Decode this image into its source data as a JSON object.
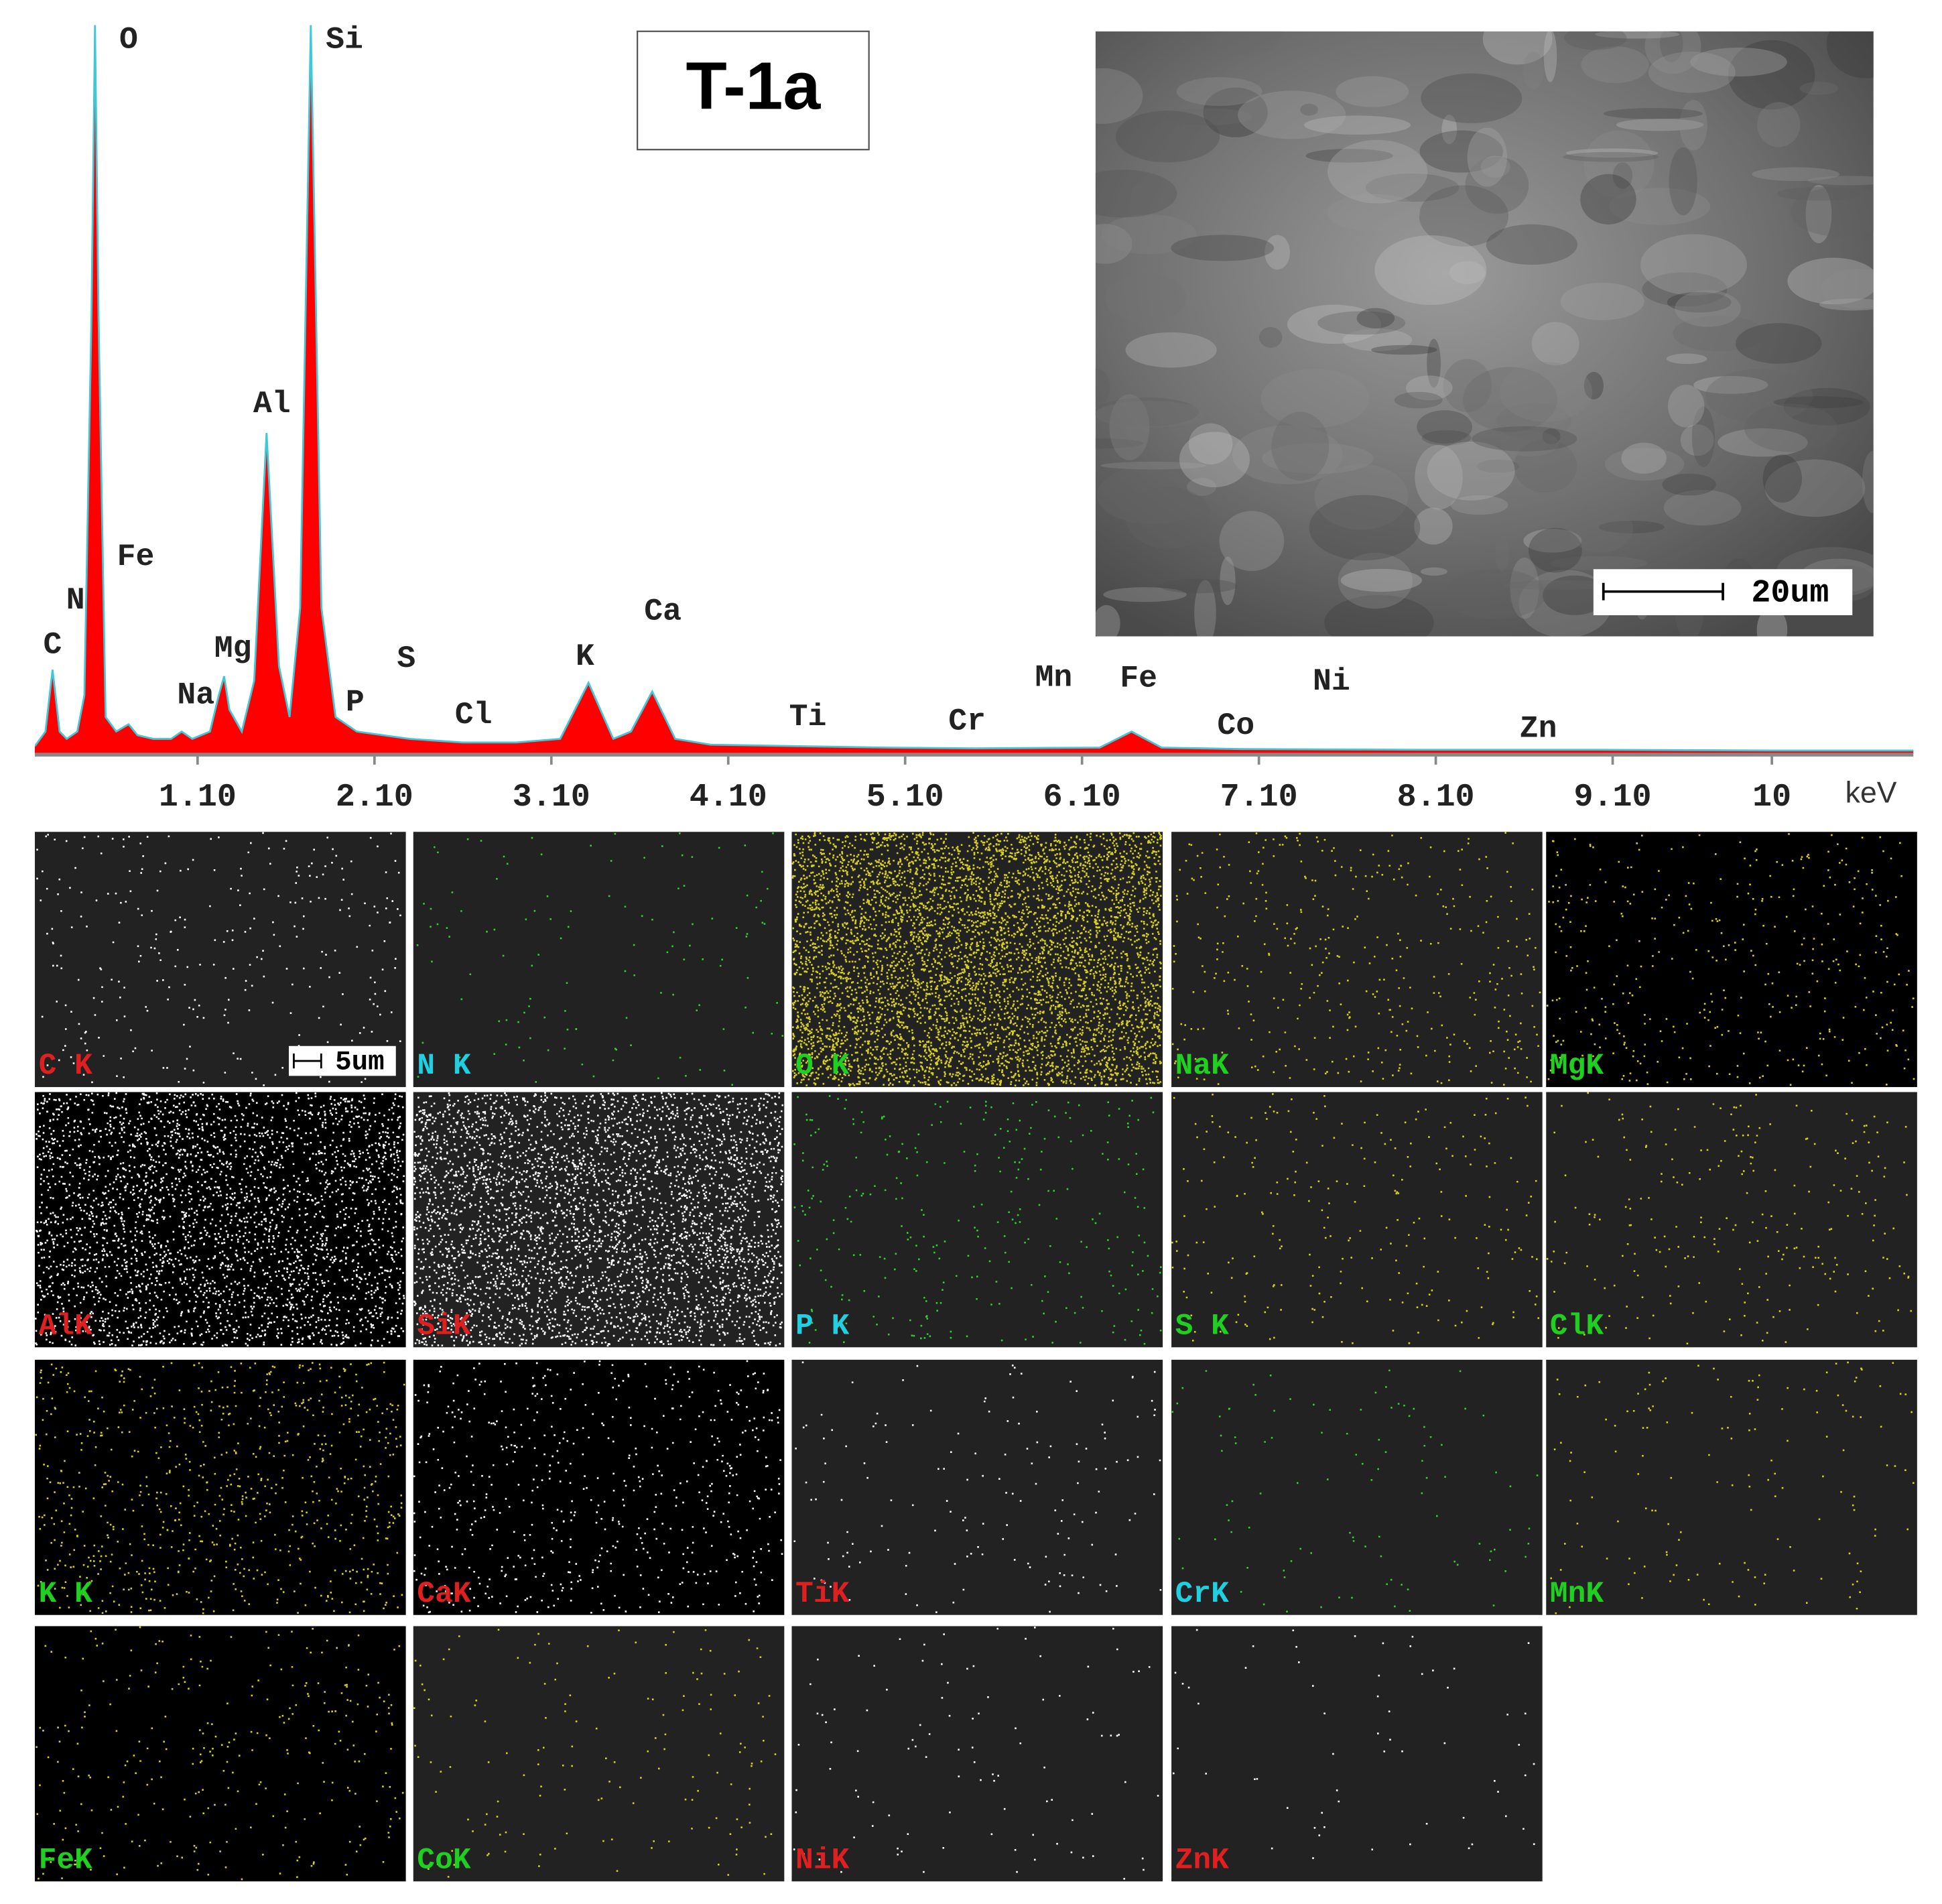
{
  "chart_data": {
    "type": "area",
    "title": "T-1a",
    "x": [
      0.18,
      0.24,
      0.28,
      0.32,
      0.36,
      0.42,
      0.46,
      0.5,
      0.52,
      0.54,
      0.58,
      0.64,
      0.71,
      0.76,
      0.85,
      0.95,
      1.01,
      1.07,
      1.17,
      1.22,
      1.25,
      1.28,
      1.35,
      1.42,
      1.49,
      1.56,
      1.62,
      1.68,
      1.74,
      1.8,
      1.88,
      2.0,
      2.3,
      2.6,
      2.9,
      3.15,
      3.31,
      3.45,
      3.55,
      3.67,
      3.8,
      4.0,
      4.5,
      5.0,
      5.5,
      6.2,
      6.38,
      6.55,
      7.0,
      8.0,
      9.0,
      10.0,
      10.8
    ],
    "values": [
      1,
      3,
      11.5,
      3,
      2,
      3,
      8,
      60,
      100,
      60,
      5,
      3,
      4,
      2.5,
      2,
      2,
      3,
      2,
      3,
      8,
      10.6,
      6,
      3,
      10,
      44,
      12,
      5,
      20,
      100,
      20,
      5,
      3,
      2,
      1.5,
      1.5,
      2,
      9.7,
      2,
      3,
      8.5,
      2,
      1.2,
      1,
      0.8,
      0.7,
      0.8,
      3,
      0.8,
      0.6,
      0.5,
      0.5,
      0.4,
      0.4
    ],
    "color": "#ff0000",
    "line_color": "#40c8d8",
    "xlim": [
      0.18,
      10.8
    ],
    "ylim": [
      0,
      100
    ],
    "xticks": [
      {
        "value": 1.1,
        "label": "1.10"
      },
      {
        "value": 2.1,
        "label": "2.10"
      },
      {
        "value": 3.1,
        "label": "3.10"
      },
      {
        "value": 4.1,
        "label": "4.10"
      },
      {
        "value": 5.1,
        "label": "5.10"
      },
      {
        "value": 6.1,
        "label": "6.10"
      },
      {
        "value": 7.1,
        "label": "7.10"
      },
      {
        "value": 8.1,
        "label": "8.10"
      },
      {
        "value": 9.1,
        "label": "9.10"
      },
      10
    ],
    "x_label": "keV",
    "peaks": [
      {
        "label": "C",
        "x": 0.28,
        "y": 14.9
      },
      {
        "label": "N",
        "x": 0.41,
        "y": 21
      },
      {
        "label": "O",
        "x": 0.71,
        "y": 98
      },
      {
        "label": "Fe",
        "x": 0.75,
        "y": 27
      },
      {
        "label": "Na",
        "x": 1.09,
        "y": 8
      },
      {
        "label": "Mg",
        "x": 1.3,
        "y": 14.4
      },
      {
        "label": "Al",
        "x": 1.52,
        "y": 48
      },
      {
        "label": "Si",
        "x": 1.93,
        "y": 98
      },
      {
        "label": "P",
        "x": 1.99,
        "y": 7
      },
      {
        "label": "S",
        "x": 2.28,
        "y": 13
      },
      {
        "label": "Cl",
        "x": 2.66,
        "y": 5.3
      },
      {
        "label": "K",
        "x": 3.29,
        "y": 13.3
      },
      {
        "label": "Ca",
        "x": 3.73,
        "y": 19.5
      },
      {
        "label": "Ti",
        "x": 4.55,
        "y": 5
      },
      {
        "label": "Cr",
        "x": 5.45,
        "y": 4.4
      },
      {
        "label": "Mn",
        "x": 5.94,
        "y": 10.4
      },
      {
        "label": "Fe",
        "x": 6.42,
        "y": 10.3
      },
      {
        "label": "Co",
        "x": 6.97,
        "y": 3.8
      },
      {
        "label": "Ni",
        "x": 7.51,
        "y": 9.9
      },
      {
        "label": "Zn",
        "x": 8.68,
        "y": 3.4
      }
    ]
  },
  "sem_image": {
    "scale_bar": "20um"
  },
  "maps": {
    "scale_bar": "5um",
    "panels": [
      {
        "label": "C K",
        "label_color": "#e02020",
        "dot_color": "#ffffff",
        "background": "#222222",
        "dots": 300
      },
      {
        "label": "N K",
        "label_color": "#20d0e0",
        "dot_color": "#30d030",
        "background": "#222222",
        "dots": 120
      },
      {
        "label": "O K",
        "label_color": "#20d020",
        "dot_color": "#d8d020",
        "background": "#222222",
        "dots": 6000
      },
      {
        "label": "NaK",
        "label_color": "#20d020",
        "dot_color": "#d8d020",
        "background": "#222222",
        "dots": 400
      },
      {
        "label": "MgK",
        "label_color": "#20d020",
        "dot_color": "#d8d020",
        "background": "#000000",
        "dots": 400
      },
      {
        "label": "AlK",
        "label_color": "#e02020",
        "dot_color": "#ffffff",
        "background": "#000000",
        "dots": 3000
      },
      {
        "label": "SiK",
        "label_color": "#e02020",
        "dot_color": "#ffffff",
        "background": "#222222",
        "dots": 4000
      },
      {
        "label": "P K",
        "label_color": "#20d0e0",
        "dot_color": "#30d030",
        "background": "#222222",
        "dots": 300
      },
      {
        "label": "S K",
        "label_color": "#20d020",
        "dot_color": "#d8d020",
        "background": "#222222",
        "dots": 250
      },
      {
        "label": "ClK",
        "label_color": "#20d020",
        "dot_color": "#d8d020",
        "background": "#222222",
        "dots": 250
      },
      {
        "label": "K K",
        "label_color": "#20d020",
        "dot_color": "#d8d020",
        "background": "#000000",
        "dots": 800
      },
      {
        "label": "CaK",
        "label_color": "#e02020",
        "dot_color": "#ffffff",
        "background": "#000000",
        "dots": 600
      },
      {
        "label": "TiK",
        "label_color": "#e02020",
        "dot_color": "#ffffff",
        "background": "#222222",
        "dots": 150
      },
      {
        "label": "CrK",
        "label_color": "#20d0e0",
        "dot_color": "#30d030",
        "background": "#222222",
        "dots": 100
      },
      {
        "label": "MnK",
        "label_color": "#20d020",
        "dot_color": "#d8d020",
        "background": "#222222",
        "dots": 150
      },
      {
        "label": "FeK",
        "label_color": "#20d020",
        "dot_color": "#d8d020",
        "background": "#000000",
        "dots": 300
      },
      {
        "label": "CoK",
        "label_color": "#20d020",
        "dot_color": "#d8d020",
        "background": "#222222",
        "dots": 150
      },
      {
        "label": "NiK",
        "label_color": "#e02020",
        "dot_color": "#ffffff",
        "background": "#222222",
        "dots": 100
      },
      {
        "label": "ZnK",
        "label_color": "#e02020",
        "dot_color": "#ffffff",
        "background": "#222222",
        "dots": 60
      }
    ]
  }
}
